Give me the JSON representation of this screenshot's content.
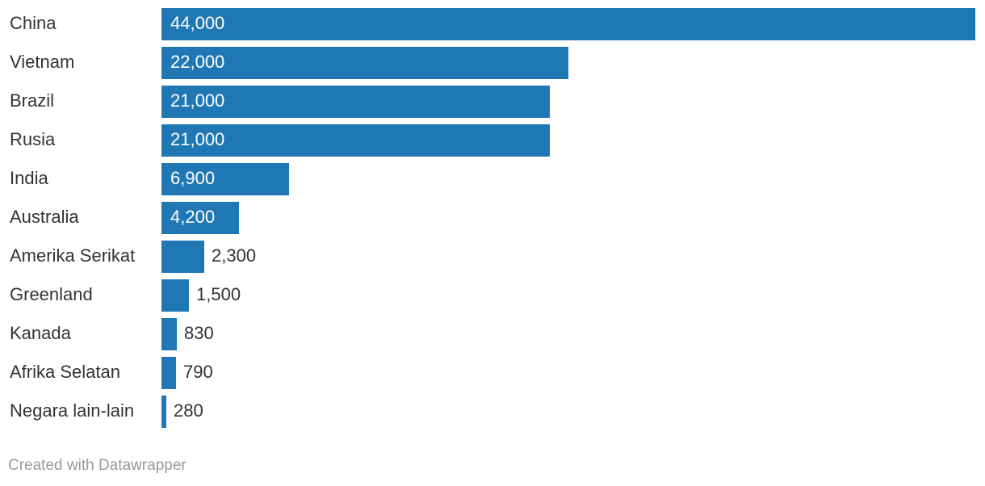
{
  "chart_data": {
    "type": "bar",
    "orientation": "horizontal",
    "categories": [
      "China",
      "Vietnam",
      "Brazil",
      "Rusia",
      "India",
      "Australia",
      "Amerika Serikat",
      "Greenland",
      "Kanada",
      "Afrika Selatan",
      "Negara lain-lain"
    ],
    "values": [
      44000,
      22000,
      21000,
      21000,
      6900,
      4200,
      2300,
      1500,
      830,
      790,
      280
    ],
    "value_labels": [
      "44,000",
      "22,000",
      "21,000",
      "21,000",
      "6,900",
      "4,200",
      "2,300",
      "1,500",
      "830",
      "790",
      "280"
    ],
    "xlim": [
      0,
      44000
    ],
    "grid": false,
    "bar_color": "#1f77b4"
  },
  "footer": {
    "credit": "Created with Datawrapper"
  }
}
